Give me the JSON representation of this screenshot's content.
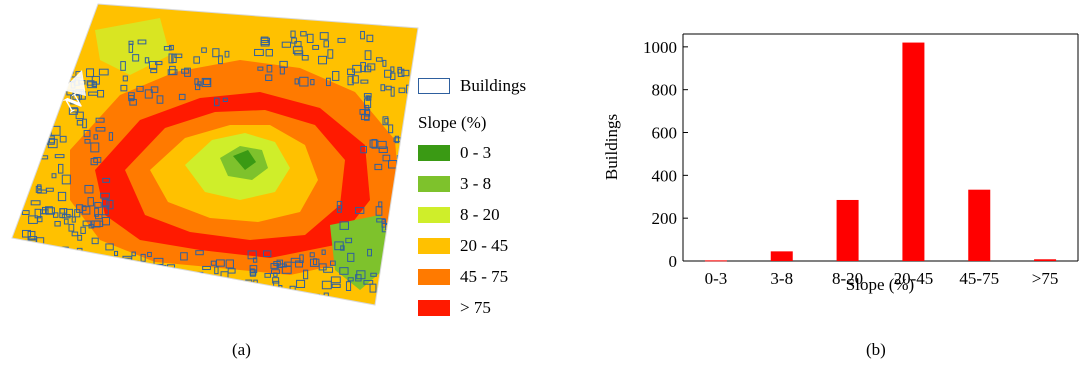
{
  "panel_a": {
    "caption": "(a)",
    "legend": {
      "buildings_label": "Buildings",
      "slope_title": "Slope (%)",
      "classes": [
        {
          "label": "0 - 3",
          "color": "#3a9a14"
        },
        {
          "label": "3 - 8",
          "color": "#7ec22c"
        },
        {
          "label": "8 - 20",
          "color": "#cfee2a"
        },
        {
          "label": "20 - 45",
          "color": "#ffc100"
        },
        {
          "label": "45 - 75",
          "color": "#ff7a00"
        },
        {
          "label": "> 75",
          "color": "#ff1a00"
        }
      ],
      "buildings_color": "#2e5f9e"
    }
  },
  "panel_b": {
    "caption": "(b)"
  },
  "chart_data": {
    "type": "bar",
    "categories": [
      "0-3",
      "3-8",
      "8-20",
      "20-45",
      "45-75",
      ">75"
    ],
    "values": [
      3,
      45,
      285,
      1020,
      333,
      8
    ],
    "xlabel": "Slope (%)",
    "ylabel": "Buildings",
    "yticks": [
      0,
      200,
      400,
      600,
      800,
      1000
    ],
    "ylim": [
      0,
      1060
    ],
    "grid": false,
    "bar_color": "#ff0000"
  }
}
